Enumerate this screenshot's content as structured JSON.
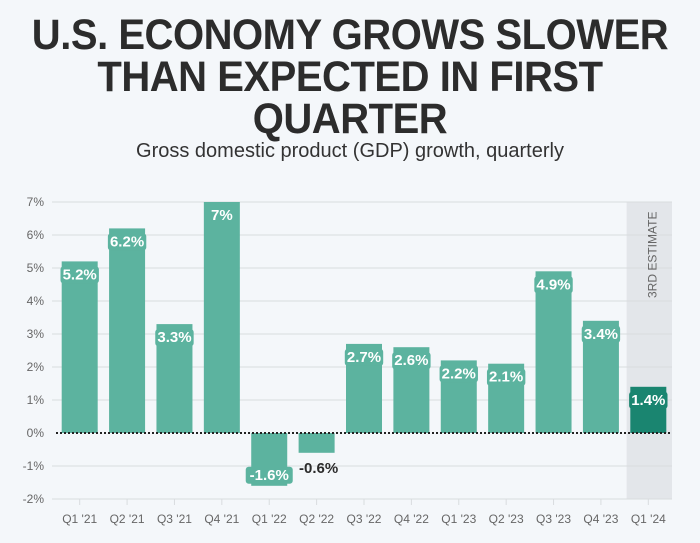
{
  "header": {
    "title_lines": [
      "U.S. ECONOMY GROWS SLOWER",
      "THAN EXPECTED IN FIRST",
      "QUARTER"
    ],
    "subtitle": "Gross domestic product (GDP) growth, quarterly"
  },
  "colors": {
    "bar": "#5cb39f",
    "bar_highlight": "#1a8570",
    "label_bg": "#5cb39f",
    "background": "#f4f7fa",
    "estimate_band": "#e3e6ea",
    "grid": "#d9dcdf"
  },
  "chart_data": {
    "type": "bar",
    "title": "U.S. ECONOMY GROWS SLOWER THAN EXPECTED IN FIRST QUARTER",
    "subtitle": "Gross domestic product (GDP) growth, quarterly",
    "xlabel": "",
    "ylabel": "",
    "categories": [
      "Q1 '21",
      "Q2 '21",
      "Q3 '21",
      "Q4 '21",
      "Q1 '22",
      "Q2 '22",
      "Q3 '22",
      "Q4 '22",
      "Q1 '23",
      "Q2 '23",
      "Q3 '23",
      "Q4 '23",
      "Q1 '24"
    ],
    "values": [
      5.2,
      6.2,
      3.3,
      7.0,
      -1.6,
      -0.6,
      2.7,
      2.6,
      2.2,
      2.1,
      4.9,
      3.4,
      1.4
    ],
    "data_labels": [
      "5.2%",
      "6.2%",
      "3.3%",
      "7%",
      "-1.6%",
      "-0.6%",
      "2.7%",
      "2.6%",
      "2.2%",
      "2.1%",
      "4.9%",
      "3.4%",
      "1.4%"
    ],
    "highlight_index": 12,
    "ylim": [
      -2,
      7
    ],
    "yticks": [
      -2,
      -1,
      0,
      1,
      2,
      3,
      4,
      5,
      6,
      7
    ],
    "ytick_labels": [
      "-2%",
      "-1%",
      "0%",
      "1%",
      "2%",
      "3%",
      "4%",
      "5%",
      "6%",
      "7%"
    ],
    "grid": true,
    "zero_line": "dotted",
    "annotations": [
      {
        "text": "3RD ESTIMATE",
        "category": "Q1 '24"
      }
    ]
  }
}
